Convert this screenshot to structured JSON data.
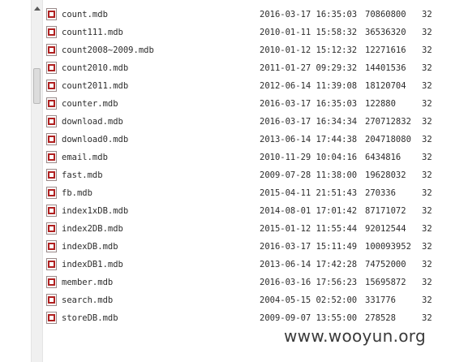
{
  "files": [
    {
      "name": "count.mdb",
      "modified": "2016-03-17 16:35:03",
      "size": "70860800",
      "attr": "32"
    },
    {
      "name": "count111.mdb",
      "modified": "2010-01-11 15:58:32",
      "size": "36536320",
      "attr": "32"
    },
    {
      "name": "count2008~2009.mdb",
      "modified": "2010-01-12 15:12:32",
      "size": "12271616",
      "attr": "32"
    },
    {
      "name": "count2010.mdb",
      "modified": "2011-01-27 09:29:32",
      "size": "14401536",
      "attr": "32"
    },
    {
      "name": "count2011.mdb",
      "modified": "2012-06-14 11:39:08",
      "size": "18120704",
      "attr": "32"
    },
    {
      "name": "counter.mdb",
      "modified": "2016-03-17 16:35:03",
      "size": "122880",
      "attr": "32"
    },
    {
      "name": "download.mdb",
      "modified": "2016-03-17 16:34:34",
      "size": "270712832",
      "attr": "32"
    },
    {
      "name": "download0.mdb",
      "modified": "2013-06-14 17:44:38",
      "size": "204718080",
      "attr": "32"
    },
    {
      "name": "email.mdb",
      "modified": "2010-11-29 10:04:16",
      "size": "6434816",
      "attr": "32"
    },
    {
      "name": "fast.mdb",
      "modified": "2009-07-28 11:38:00",
      "size": "19628032",
      "attr": "32"
    },
    {
      "name": "fb.mdb",
      "modified": "2015-04-11 21:51:43",
      "size": "270336",
      "attr": "32"
    },
    {
      "name": "index1xDB.mdb",
      "modified": "2014-08-01 17:01:42",
      "size": "87171072",
      "attr": "32"
    },
    {
      "name": "index2DB.mdb",
      "modified": "2015-01-12 11:55:44",
      "size": "92012544",
      "attr": "32"
    },
    {
      "name": "indexDB.mdb",
      "modified": "2016-03-17 15:11:49",
      "size": "100093952",
      "attr": "32"
    },
    {
      "name": "indexDB1.mdb",
      "modified": "2013-06-14 17:42:28",
      "size": "74752000",
      "attr": "32"
    },
    {
      "name": "member.mdb",
      "modified": "2016-03-16 17:56:23",
      "size": "15695872",
      "attr": "32"
    },
    {
      "name": "search.mdb",
      "modified": "2004-05-15 02:52:00",
      "size": "331776",
      "attr": "32"
    },
    {
      "name": "storeDB.mdb",
      "modified": "2009-09-07 13:55:00",
      "size": "278528",
      "attr": "32"
    }
  ],
  "file_icon": "access-database-icon",
  "watermark": "www.wooyun.org"
}
